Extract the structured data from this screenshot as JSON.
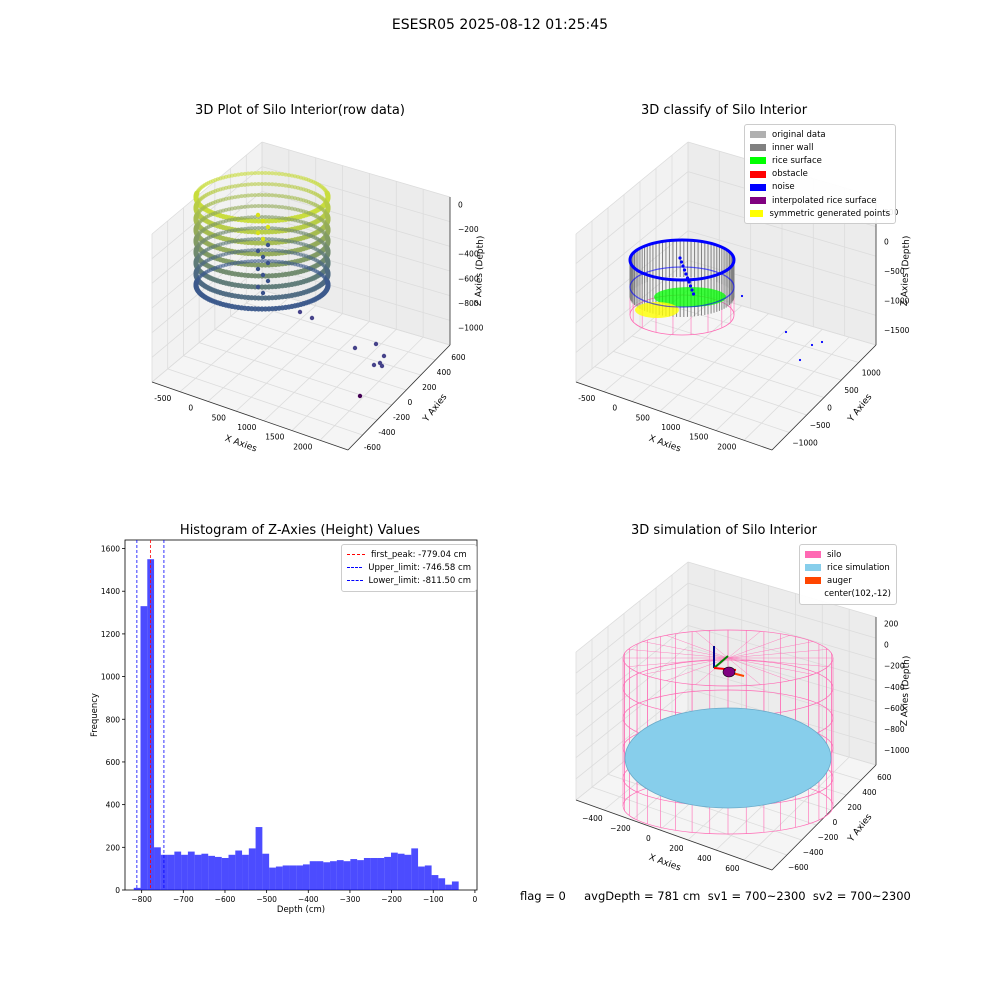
{
  "suptitle": "ESESR05 2025-08-12 01:25:45",
  "bottom_text": "flag = 0     avgDepth = 781 cm  sv1 = 700~2300  sv2 = 700~2300",
  "colors": {
    "original": "#b0b0b0",
    "inner_wall": "#808080",
    "rice_surface": "#00ff00",
    "obstacle": "#ff0000",
    "noise": "#0000ff",
    "interp": "#800080",
    "sym": "#ffff00",
    "silo": "#ff69b4",
    "rice_sim": "#87ceeb",
    "auger": "#ff4500",
    "hist": "#0000ff"
  },
  "chart_data": [
    {
      "type": "scatter",
      "title": "3D Plot of Silo Interior(row data)",
      "xlabel": "X Axies",
      "ylabel": "Y Axies",
      "zlabel": "Z Axies (Depth)",
      "x_ticks": [
        "-500",
        "0",
        "500",
        "1000",
        "1500",
        "2000"
      ],
      "y_ticks": [
        "-600",
        "-400",
        "-200",
        "0",
        "200",
        "400",
        "600"
      ],
      "z_ticks": [
        "0",
        "−200",
        "−400",
        "−600",
        "−800",
        "−1000"
      ]
    },
    {
      "type": "scatter",
      "title": "3D classify of Silo Interior",
      "xlabel": "X Axies",
      "ylabel": "Y Axies",
      "zlabel": "Z Axies (Depth)",
      "x_ticks": [
        "-500",
        "0",
        "500",
        "1000",
        "1500",
        "2000"
      ],
      "y_ticks": [
        "−1000",
        "−500",
        "0",
        "500",
        "1000"
      ],
      "z_ticks": [
        "500",
        "0",
        "−500",
        "−1000",
        "−1500"
      ],
      "legend": [
        "original data",
        "inner wall",
        "rice surface",
        "obstacle",
        "noise",
        "interpolated rice surface",
        "symmetric generated points"
      ]
    },
    {
      "type": "bar",
      "title": "Histogram of Z-Axies (Height) Values",
      "xlabel": "Depth (cm)",
      "ylabel": "Frequency",
      "xlim": [
        -840,
        5
      ],
      "ylim": [
        0,
        1640
      ],
      "x_ticks": [
        -800,
        -700,
        -600,
        -500,
        -400,
        -300,
        -200,
        -100,
        0
      ],
      "y_ticks": [
        0,
        200,
        400,
        600,
        800,
        1000,
        1200,
        1400,
        1600
      ],
      "bin_width": 16.25,
      "bin_start": -819,
      "values": [
        10,
        1330,
        1550,
        200,
        165,
        165,
        180,
        165,
        180,
        165,
        170,
        160,
        155,
        150,
        165,
        185,
        165,
        195,
        295,
        170,
        105,
        110,
        115,
        115,
        115,
        120,
        135,
        135,
        130,
        135,
        140,
        135,
        145,
        140,
        150,
        150,
        150,
        155,
        175,
        170,
        165,
        195,
        110,
        115,
        70,
        55,
        25,
        40
      ],
      "lines": [
        {
          "label": "first_peak: -779.04 cm",
          "x": -779.04,
          "color": "#ff0000"
        },
        {
          "label": "Upper_limit: -746.58 cm",
          "x": -746.58,
          "color": "#0000ff"
        },
        {
          "label": "Lower_limit: -811.50 cm",
          "x": -811.5,
          "color": "#0000ff"
        }
      ]
    },
    {
      "type": "scatter",
      "title": "3D simulation of Silo Interior",
      "xlabel": "X Axies",
      "ylabel": "Y Axies",
      "zlabel": "Z Axies (Depth)",
      "x_ticks": [
        "−400",
        "−200",
        "0",
        "200",
        "400",
        "600"
      ],
      "y_ticks": [
        "−600",
        "−400",
        "−200",
        "0",
        "200",
        "400",
        "600"
      ],
      "z_ticks": [
        "200",
        "0",
        "−200",
        "−400",
        "−600",
        "−800",
        "−1000"
      ],
      "legend": [
        "silo",
        "rice simulation",
        "auger",
        "center(102,-12)"
      ]
    }
  ]
}
